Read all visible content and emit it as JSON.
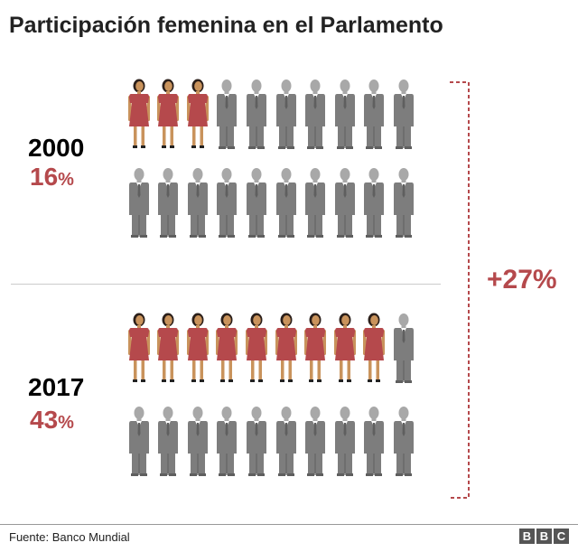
{
  "title": "Participación femenina en el Parlamento",
  "groups": [
    {
      "year": "2000",
      "percent": "16",
      "percent_symbol": "%",
      "women": 3,
      "men": 17
    },
    {
      "year": "2017",
      "percent": "43",
      "percent_symbol": "%",
      "women": 9,
      "men": 11
    }
  ],
  "change_label": "+27%",
  "source": "Fuente: Banco Mundial",
  "logo": [
    "B",
    "B",
    "C"
  ],
  "colors": {
    "women": "#b5494c",
    "men": "#7d7d7d",
    "accent": "#b5494c",
    "skin": "#c9935c",
    "hair": "#2b1f1a"
  },
  "chart_data": {
    "type": "table",
    "title": "Participación femenina en el Parlamento",
    "categories": [
      "2000",
      "2017"
    ],
    "series": [
      {
        "values": [
          16,
          43
        ]
      }
    ],
    "annotation": "+27%",
    "source": "Fuente: Banco Mundial"
  }
}
